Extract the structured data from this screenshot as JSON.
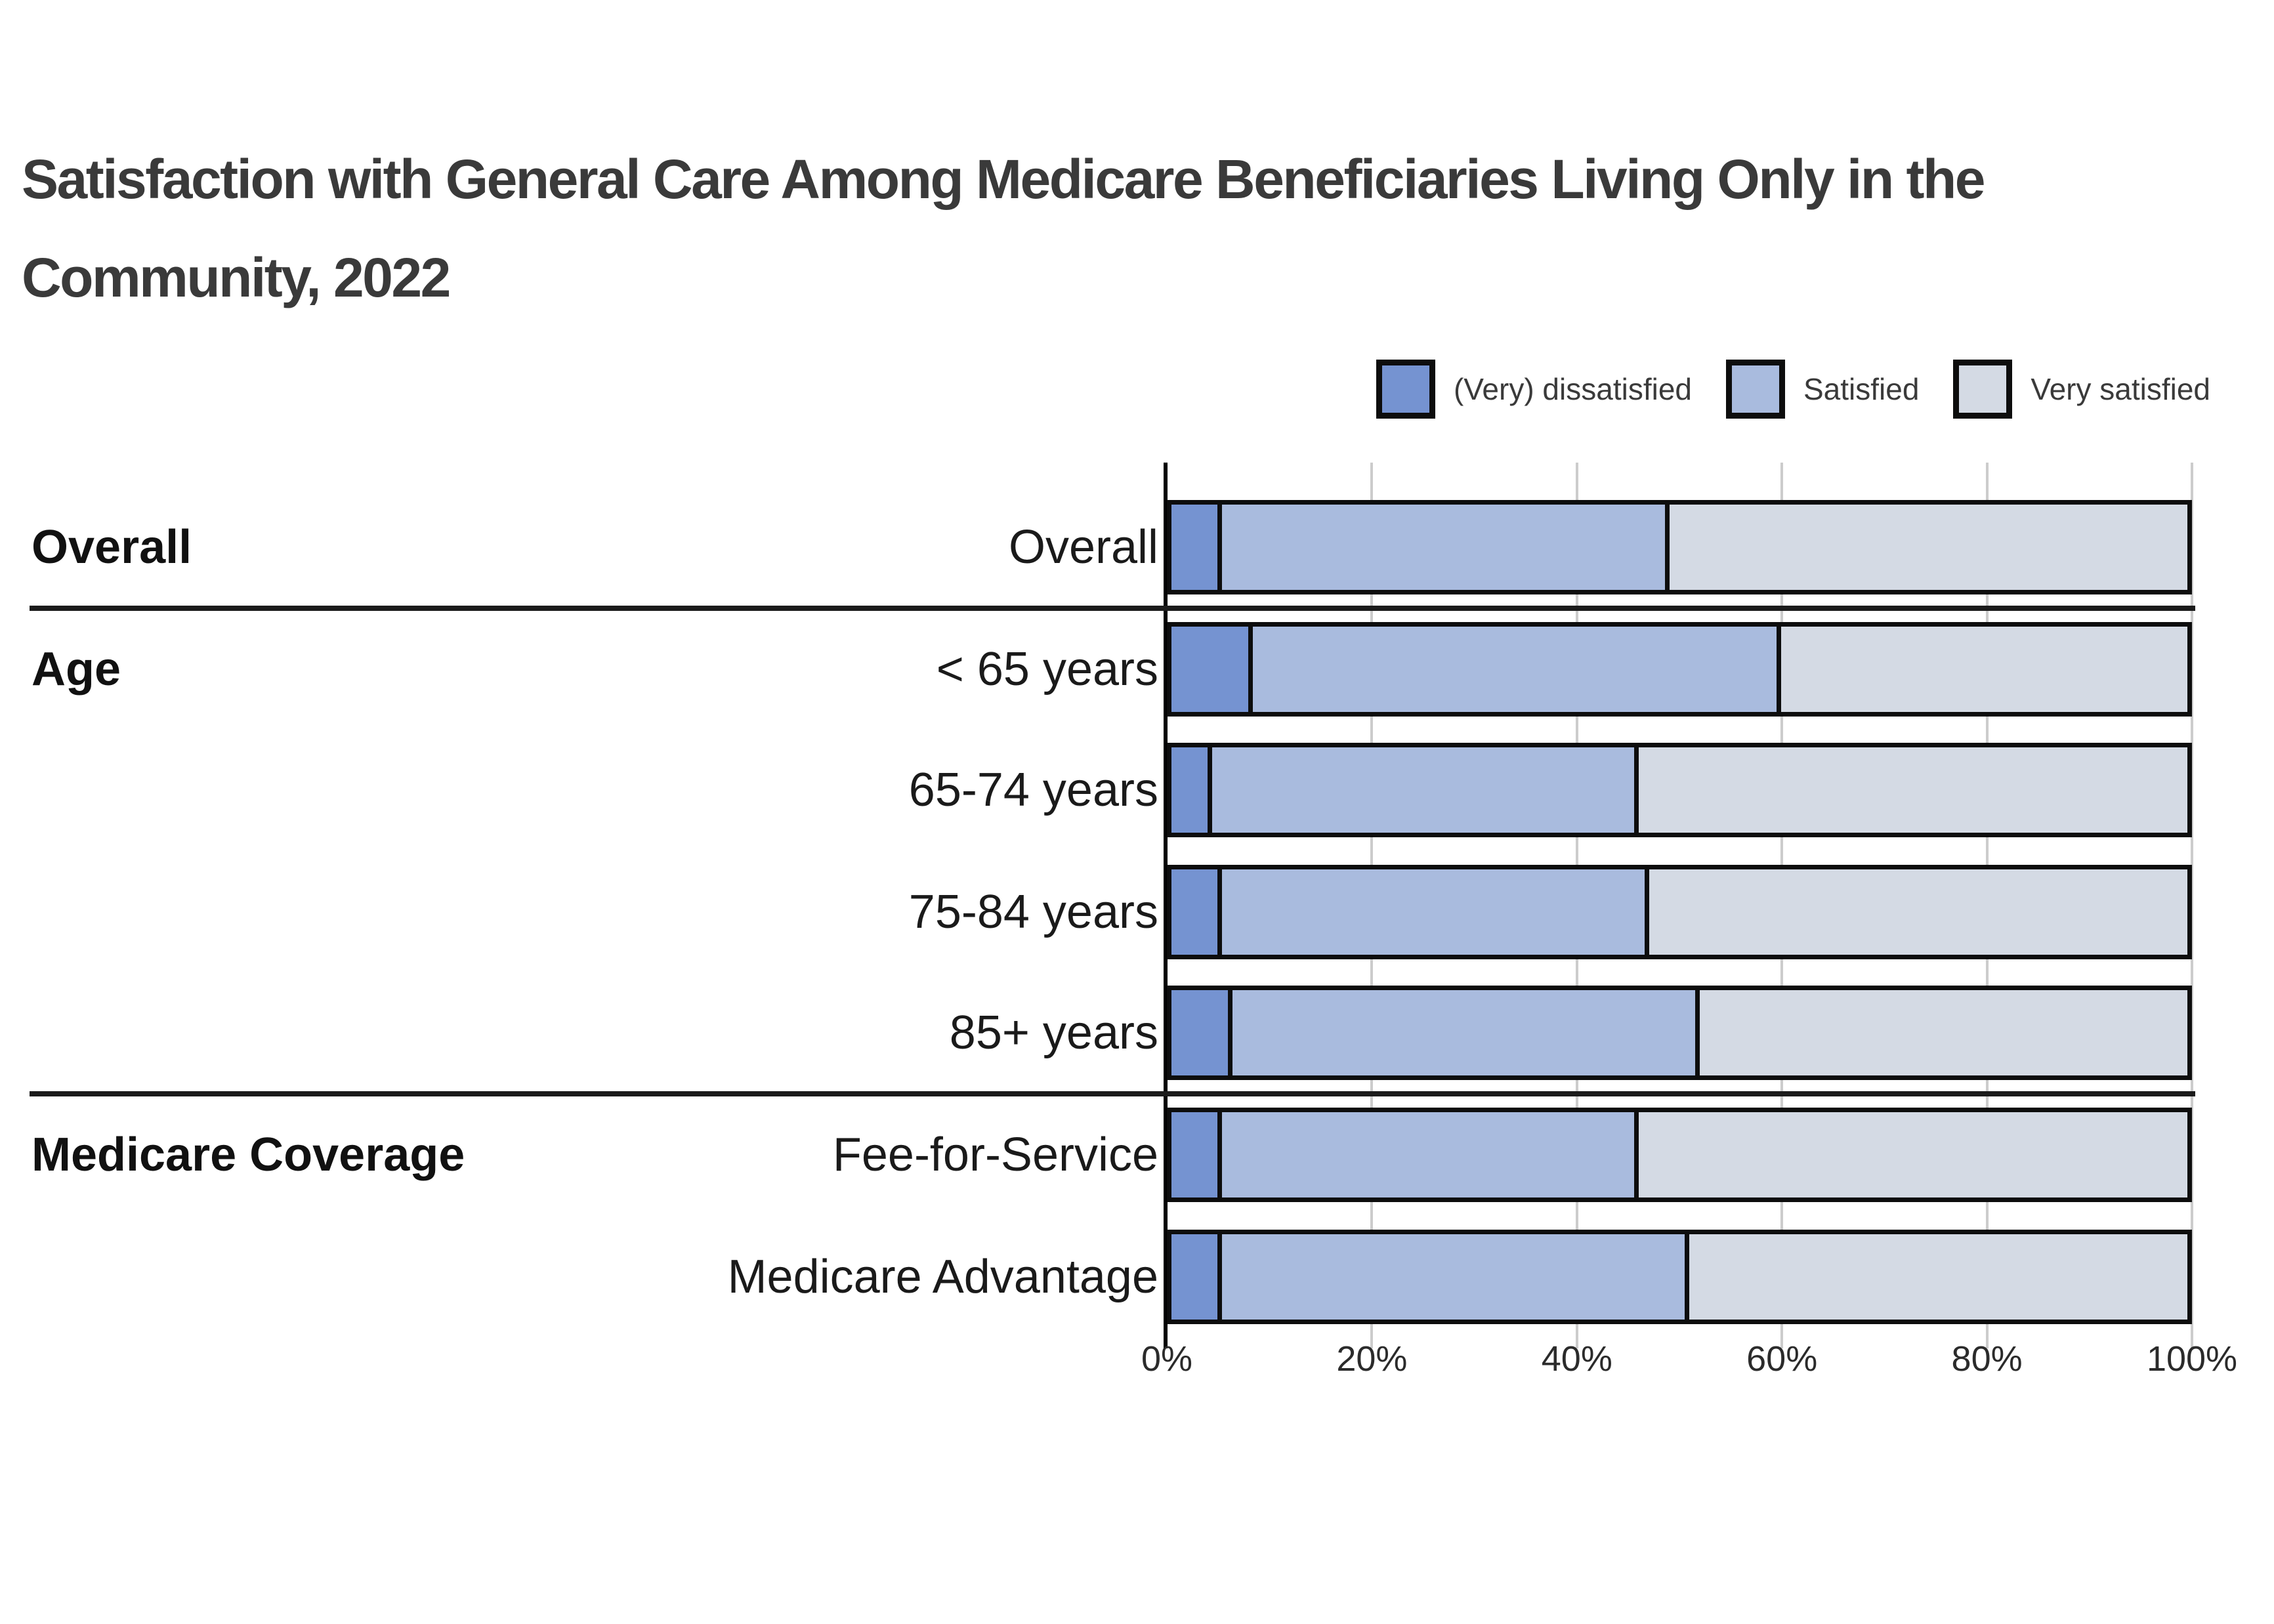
{
  "title": {
    "line1": "Satisfaction with General Care Among Medicare Beneficiaries Living Only in the",
    "line2": "Community, 2022"
  },
  "legend": [
    {
      "label": "(Very) dissatisfied",
      "color": "#7593d1"
    },
    {
      "label": "Satisfied",
      "color": "#a9bbde"
    },
    {
      "label": "Very satisfied",
      "color": "#d4dae4"
    }
  ],
  "axis": {
    "tick_labels": [
      "0%",
      "20%",
      "40%",
      "60%",
      "80%",
      "100%"
    ],
    "tick_values": [
      0,
      20,
      40,
      60,
      80,
      100
    ]
  },
  "chart_data": {
    "type": "bar",
    "orientation": "horizontal_stacked",
    "title": "Satisfaction with General Care Among Medicare Beneficiaries Living Only in the Community, 2022",
    "categories": [
      "Overall",
      "< 65 years",
      "65-74 years",
      "75-84 years",
      "85+ years",
      "Fee-for-Service",
      "Medicare Advantage"
    ],
    "series": [
      {
        "name": "(Very) dissatisfied",
        "color": "#7593d1",
        "values": [
          5,
          8,
          4,
          5,
          6,
          5,
          5
        ]
      },
      {
        "name": "Satisfied",
        "color": "#a9bbde",
        "values": [
          44,
          52,
          42,
          42,
          46,
          41,
          46
        ]
      },
      {
        "name": "Very satisfied",
        "color": "#d4dae4",
        "values": [
          51,
          40,
          54,
          53,
          48,
          54,
          49
        ]
      }
    ],
    "row_groups": [
      {
        "label": "Overall",
        "rows": [
          "Overall"
        ]
      },
      {
        "label": "Age",
        "rows": [
          "< 65 years",
          "65-74 years",
          "75-84 years",
          "85+ years"
        ]
      },
      {
        "label": "Medicare Coverage",
        "rows": [
          "Fee-for-Service",
          "Medicare Advantage"
        ]
      }
    ],
    "xlabel": "",
    "ylabel": "",
    "xlim": [
      0,
      100
    ],
    "grid": true,
    "legend_position": "top-right",
    "bar_outline_color": "#0d0d0d"
  }
}
